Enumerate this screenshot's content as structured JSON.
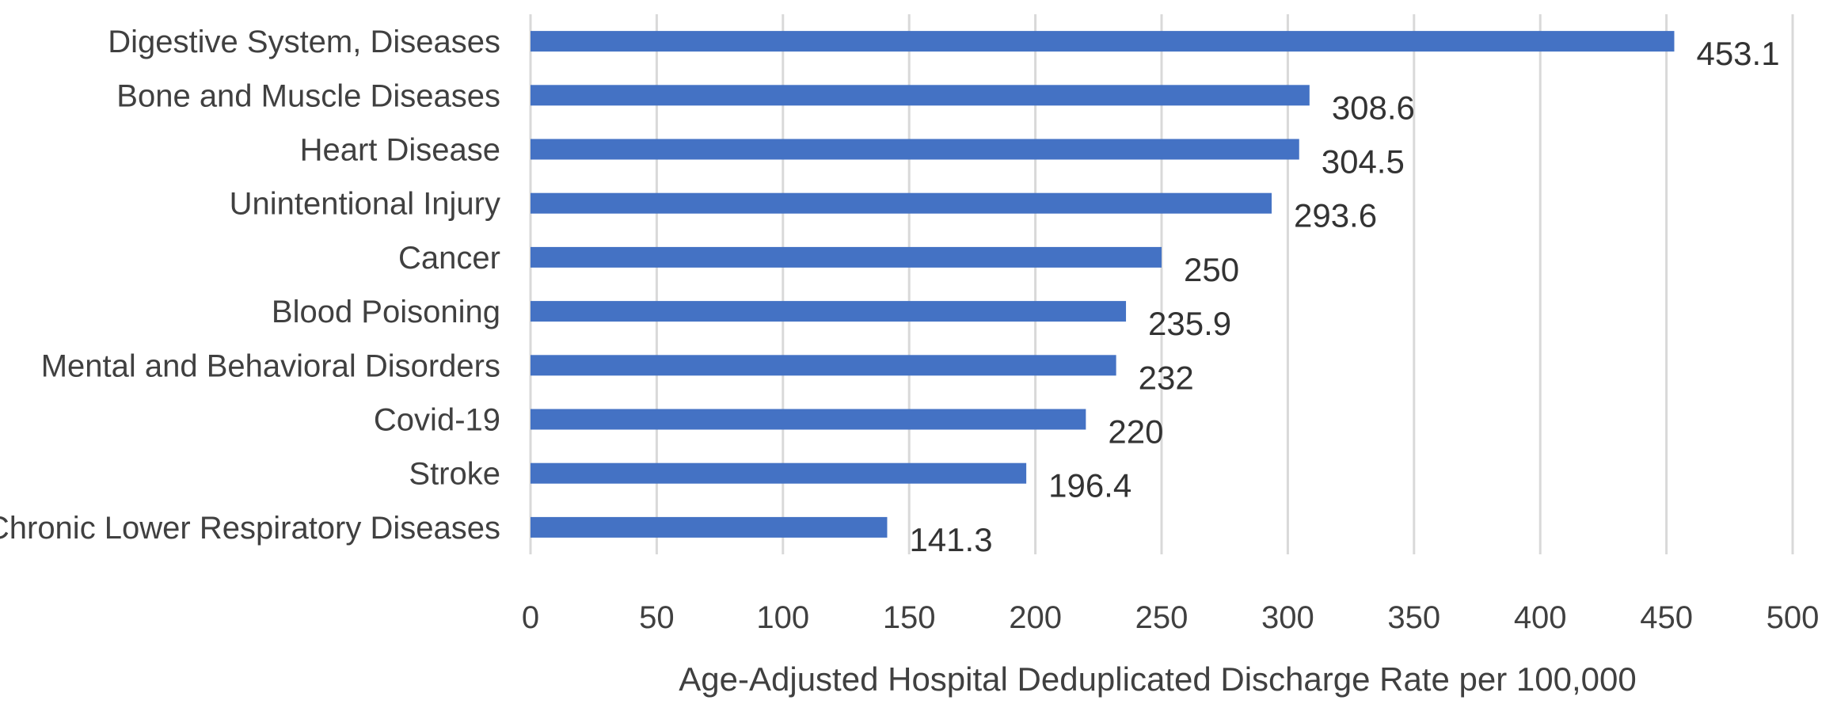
{
  "chart_data": {
    "type": "bar",
    "orientation": "horizontal",
    "title": "",
    "xlabel": "Age-Adjusted Hospital Deduplicated Discharge Rate per 100,000",
    "ylabel": "",
    "xlim": [
      0,
      500
    ],
    "x_ticks": [
      "0",
      "50",
      "100",
      "150",
      "200",
      "250",
      "300",
      "350",
      "400",
      "450",
      "500"
    ],
    "grid": "vertical",
    "legend": "none",
    "bar_color": "#4472c4",
    "categories": [
      "Digestive System, Diseases",
      "Bone and Muscle Diseases",
      "Heart Disease",
      "Unintentional Injury",
      "Cancer",
      "Blood Poisoning",
      "Mental and Behavioral Disorders",
      "Covid-19",
      "Stroke",
      "Chronic Lower Respiratory Diseases"
    ],
    "values": [
      453.1,
      308.6,
      304.5,
      293.6,
      250,
      235.9,
      232,
      220,
      196.4,
      141.3
    ],
    "data_labels": [
      "453.1",
      "308.6",
      "304.5",
      "293.6",
      "250",
      "235.9",
      "232",
      "220",
      "196.4",
      "141.3"
    ]
  }
}
